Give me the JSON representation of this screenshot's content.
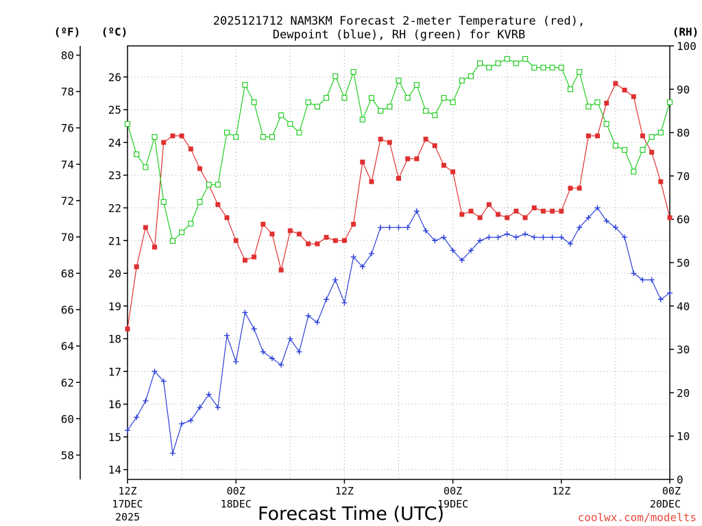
{
  "chart_data": {
    "type": "line",
    "title": [
      "2025121712 NAM3KM Forecast 2-meter Temperature (red),",
      "Dewpoint (blue), RH (green) for KVRB"
    ],
    "xlabel": "Forecast Time (UTC)",
    "credit": "coolwx.com/modelts",
    "unit_labels": {
      "left_f": "(ºF)",
      "left_c": "(ºC)",
      "right_rh": "(RH)"
    },
    "x_hours_range": [
      0,
      60
    ],
    "x_ticks": [
      {
        "hour": 0,
        "lines": [
          "12Z",
          "17DEC",
          "2025"
        ]
      },
      {
        "hour": 12,
        "lines": [
          "00Z",
          "18DEC"
        ]
      },
      {
        "hour": 24,
        "lines": [
          "12Z"
        ]
      },
      {
        "hour": 36,
        "lines": [
          "00Z",
          "19DEC"
        ]
      },
      {
        "hour": 48,
        "lines": [
          "12Z"
        ]
      },
      {
        "hour": 60,
        "lines": [
          "00Z",
          "20DEC"
        ]
      }
    ],
    "y_celsius": {
      "range": [
        13.7,
        26.95
      ],
      "ticks": [
        14,
        15,
        16,
        17,
        18,
        19,
        20,
        21,
        22,
        23,
        24,
        25,
        26
      ]
    },
    "y_fahrenheit": {
      "ticks": [
        58,
        60,
        62,
        64,
        66,
        68,
        70,
        72,
        74,
        76,
        78,
        80
      ]
    },
    "y_rh": {
      "range": [
        0,
        100
      ],
      "ticks": [
        0,
        10,
        20,
        30,
        40,
        50,
        60,
        70,
        80,
        90,
        100
      ]
    },
    "grid": true,
    "series": [
      {
        "name": "Temperature (red)",
        "axis": "celsius",
        "color": "#e03030",
        "marker": "filled-square",
        "values": [
          18.3,
          20.2,
          21.4,
          20.8,
          24.0,
          24.2,
          24.2,
          23.8,
          23.2,
          22.7,
          22.1,
          21.7,
          21.0,
          20.4,
          20.5,
          21.5,
          21.2,
          20.1,
          21.3,
          21.2,
          20.9,
          20.9,
          21.1,
          21.0,
          21.0,
          21.5,
          23.4,
          22.8,
          24.1,
          24.0,
          22.9,
          23.5,
          23.5,
          24.1,
          23.9,
          23.3,
          23.1,
          21.8,
          21.9,
          21.7,
          22.1,
          21.8,
          21.7,
          21.9,
          21.7,
          22.0,
          21.9,
          21.9,
          21.9,
          22.6,
          22.6,
          24.2,
          24.2,
          25.2,
          25.8,
          25.6,
          25.4,
          24.2,
          23.7,
          22.8,
          21.7
        ]
      },
      {
        "name": "Dewpoint (blue)",
        "axis": "celsius",
        "color": "#2a3fd8",
        "marker": "plus",
        "values": [
          15.2,
          15.6,
          16.1,
          17.0,
          16.7,
          14.5,
          15.4,
          15.5,
          15.9,
          16.3,
          15.9,
          18.1,
          17.3,
          18.8,
          18.3,
          17.6,
          17.4,
          17.2,
          18.0,
          17.6,
          18.7,
          18.5,
          19.2,
          19.8,
          19.1,
          20.5,
          20.2,
          20.6,
          21.4,
          21.4,
          21.4,
          21.4,
          21.9,
          21.3,
          21.0,
          21.1,
          20.7,
          20.4,
          20.7,
          21.0,
          21.1,
          21.1,
          21.2,
          21.1,
          21.2,
          21.1,
          21.1,
          21.1,
          21.1,
          20.9,
          21.4,
          21.7,
          22.0,
          21.6,
          21.4,
          21.1,
          20.0,
          19.8,
          19.8,
          19.2,
          19.4
        ]
      },
      {
        "name": "RH (green)",
        "axis": "rh",
        "color": "#22cc22",
        "marker": "open-square",
        "values": [
          82,
          75,
          72,
          79,
          64,
          55,
          57,
          59,
          64,
          68,
          68,
          80,
          79,
          91,
          87,
          79,
          79,
          84,
          82,
          80,
          87,
          86,
          88,
          93,
          88,
          94,
          83,
          88,
          85,
          86,
          92,
          88,
          91,
          85,
          84,
          88,
          87,
          92,
          93,
          96,
          95,
          96,
          97,
          96,
          97,
          95,
          95,
          95,
          95,
          90,
          94,
          86,
          87,
          82,
          77,
          76,
          71,
          76,
          79,
          80,
          87
        ]
      }
    ]
  }
}
